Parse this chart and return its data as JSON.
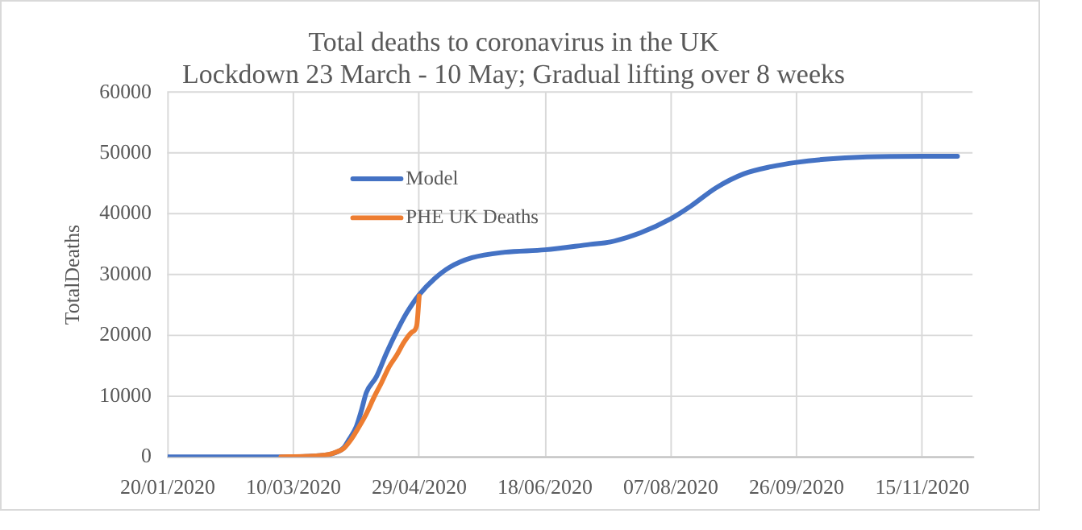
{
  "chart_data": {
    "type": "line",
    "title": "Total deaths to coronavirus in the UK",
    "subtitle": "Lockdown 23 March - 10 May; Gradual lifting over 8 weeks",
    "ylabel": "TotalDeaths",
    "series": [
      {
        "name": "Model",
        "color": "#4472c4",
        "x": [
          "2020-01-20",
          "2020-03-10",
          "2020-03-20",
          "2020-03-26",
          "2020-03-30",
          "2020-04-01",
          "2020-04-04",
          "2020-04-06",
          "2020-04-08",
          "2020-04-12",
          "2020-04-16",
          "2020-04-20",
          "2020-04-24",
          "2020-04-29",
          "2020-05-05",
          "2020-05-11",
          "2020-05-20",
          "2020-06-02",
          "2020-06-18",
          "2020-07-06",
          "2020-07-14",
          "2020-07-26",
          "2020-08-07",
          "2020-08-15",
          "2020-08-25",
          "2020-09-05",
          "2020-09-16",
          "2020-09-26",
          "2020-10-07",
          "2020-10-24",
          "2020-11-15",
          "2020-11-29"
        ],
        "values": [
          0,
          0,
          200,
          600,
          1500,
          2800,
          5000,
          7600,
          10600,
          13200,
          17100,
          20600,
          23700,
          26700,
          29300,
          31200,
          32800,
          33700,
          34100,
          35000,
          35400,
          36900,
          39200,
          41300,
          44300,
          46600,
          47800,
          48500,
          49000,
          49400,
          49500,
          49500
        ]
      },
      {
        "name": "PHE UK Deaths",
        "color": "#ed7d31",
        "x": [
          "2020-03-05",
          "2020-03-15",
          "2020-03-20",
          "2020-03-24",
          "2020-03-27",
          "2020-03-30",
          "2020-04-02",
          "2020-04-05",
          "2020-04-08",
          "2020-04-11",
          "2020-04-14",
          "2020-04-17",
          "2020-04-20",
          "2020-04-23",
          "2020-04-26",
          "2020-04-28",
          "2020-04-29"
        ],
        "values": [
          0,
          100,
          200,
          400,
          800,
          1400,
          2900,
          4900,
          7100,
          9800,
          12200,
          14800,
          16700,
          18900,
          20500,
          21600,
          26500
        ]
      }
    ],
    "xlim": [
      "2020-01-20",
      "2020-12-05"
    ],
    "xticks": [
      {
        "value": "2020-01-20",
        "label": "20/01/2020"
      },
      {
        "value": "2020-03-10",
        "label": "10/03/2020"
      },
      {
        "value": "2020-04-29",
        "label": "29/04/2020"
      },
      {
        "value": "2020-06-18",
        "label": "18/06/2020"
      },
      {
        "value": "2020-08-07",
        "label": "07/08/2020"
      },
      {
        "value": "2020-09-26",
        "label": "26/09/2020"
      },
      {
        "value": "2020-11-15",
        "label": "15/11/2020"
      }
    ],
    "ylim": [
      0,
      60000
    ],
    "yticks": [
      0,
      10000,
      20000,
      30000,
      40000,
      50000,
      60000
    ],
    "grid": true,
    "legend": "top left"
  }
}
